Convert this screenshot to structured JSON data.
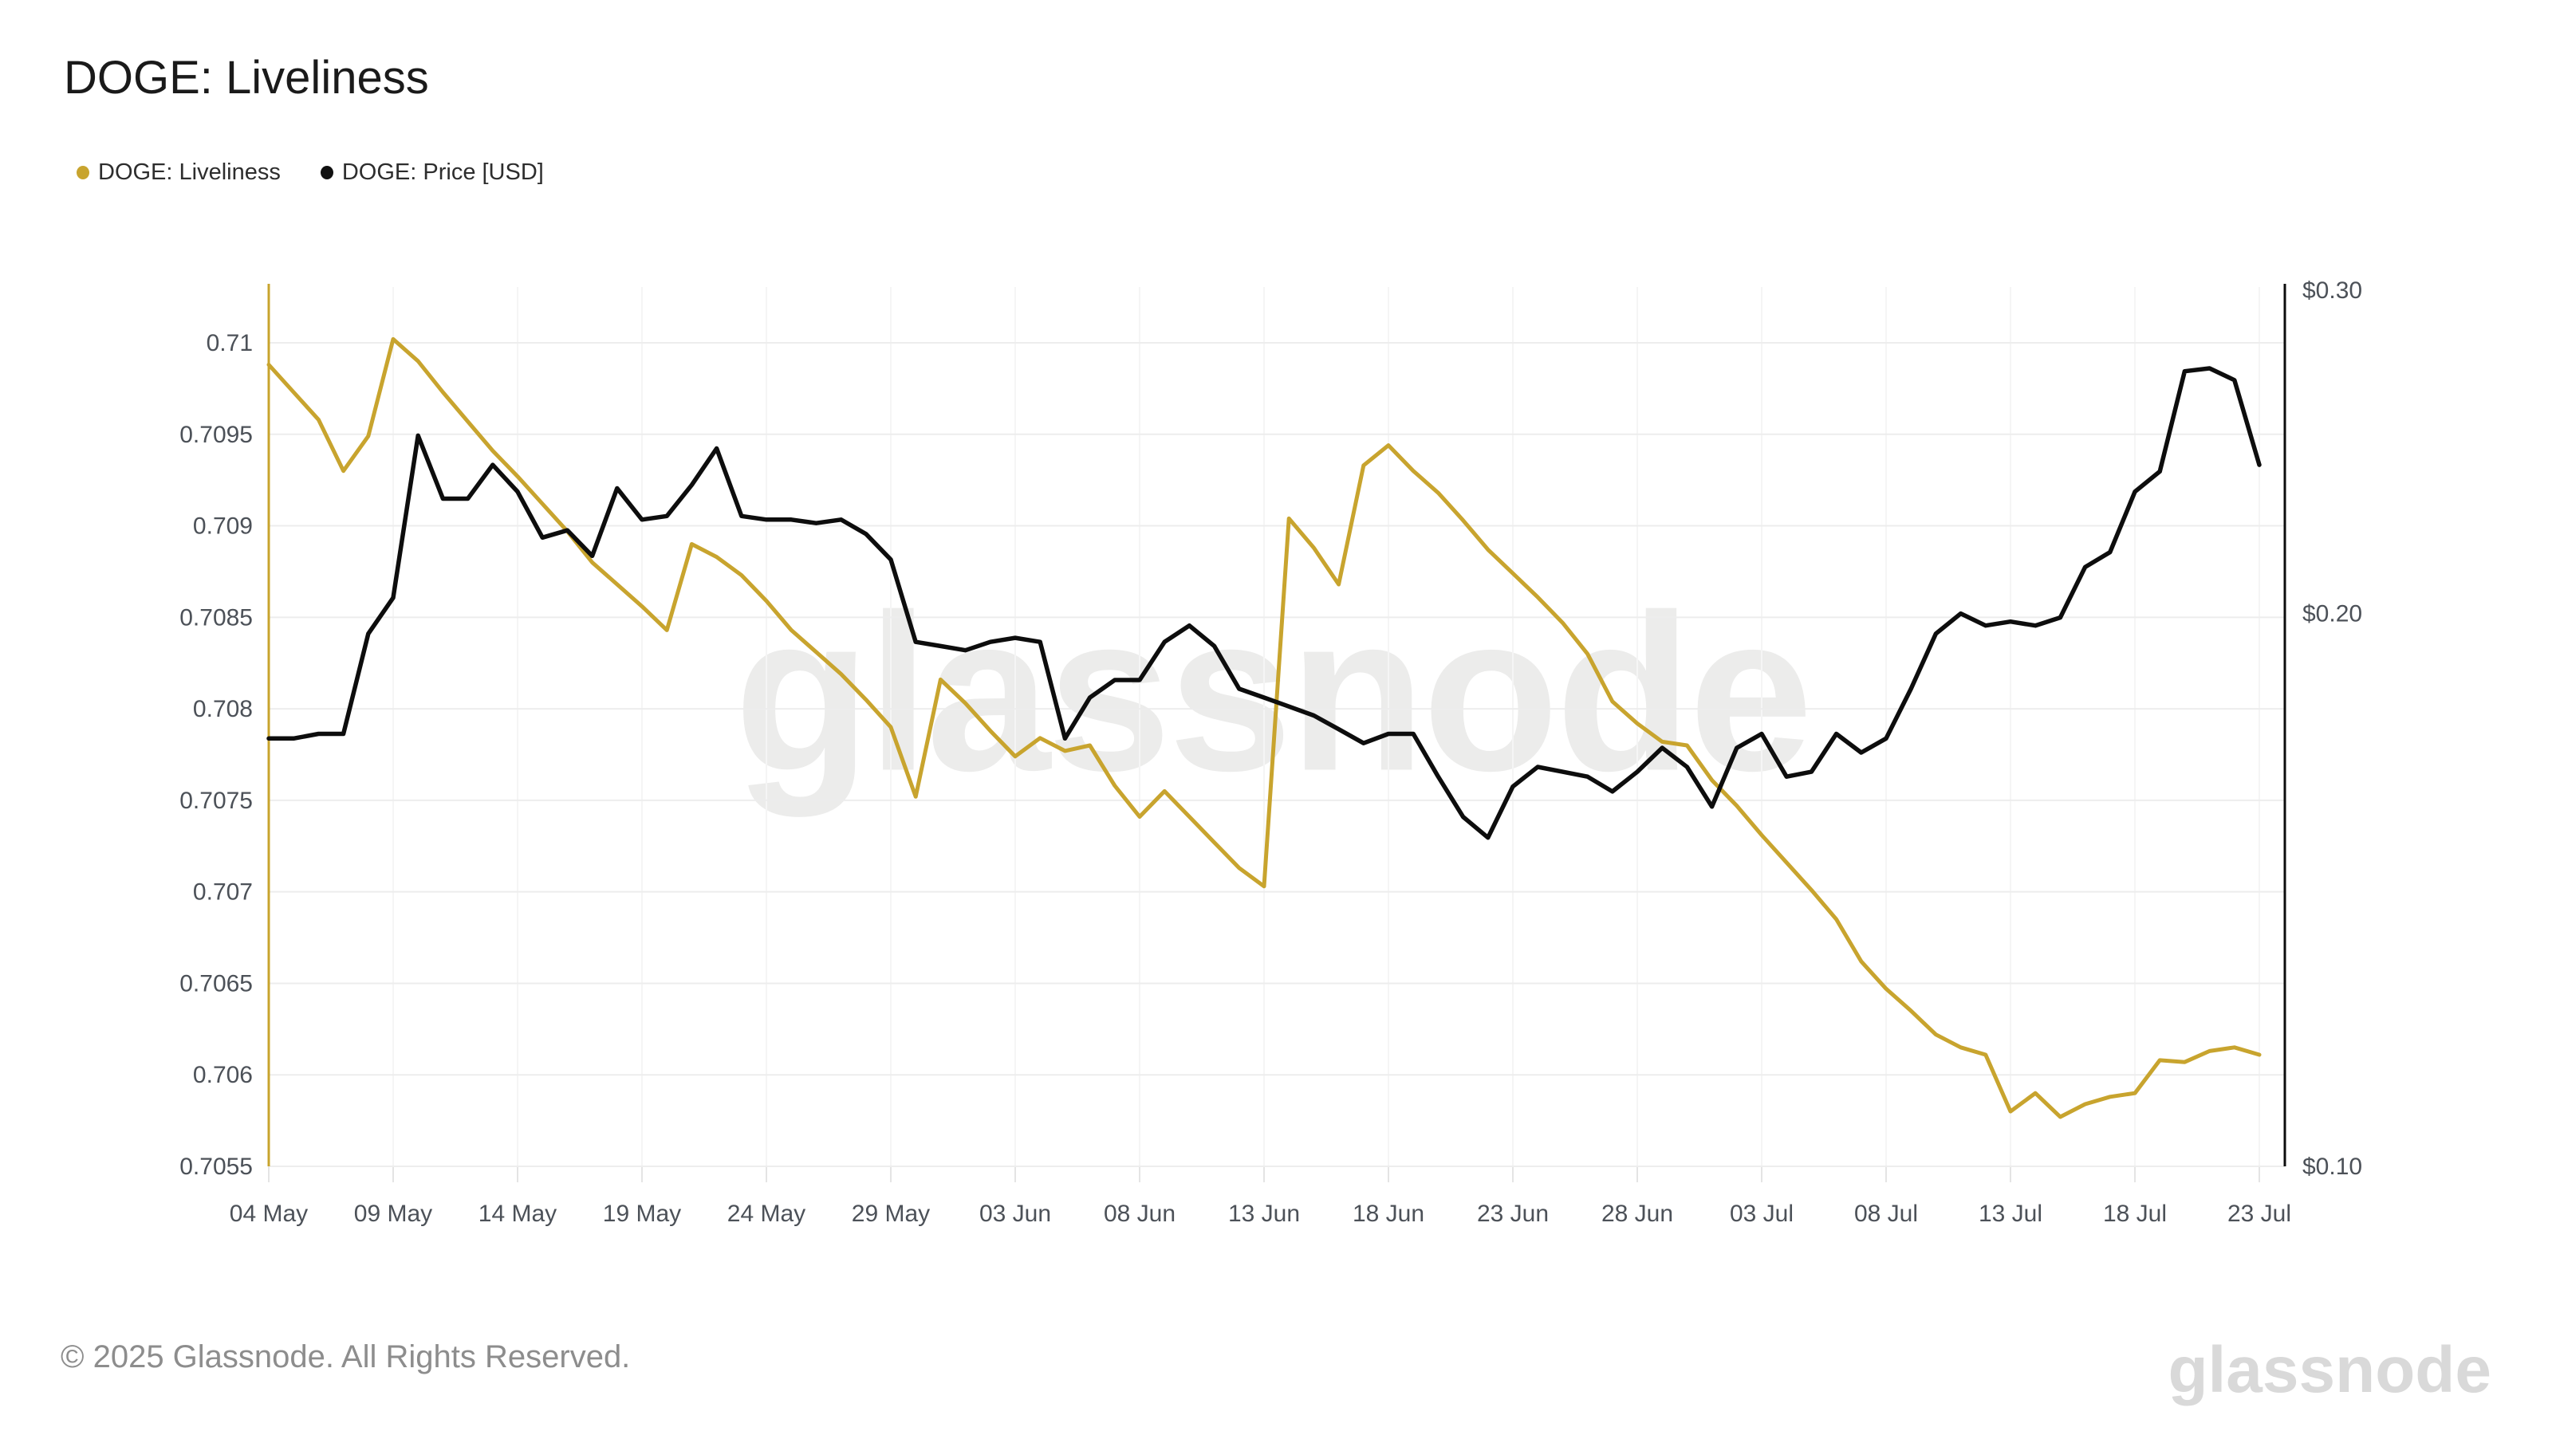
{
  "header": {
    "title": "DOGE: Liveliness"
  },
  "legend": [
    {
      "label": "DOGE: Liveliness",
      "color": "#c8a42e"
    },
    {
      "label": "DOGE: Price [USD]",
      "color": "#111111"
    }
  ],
  "watermark": {
    "text": "glassnode"
  },
  "footer": {
    "copyright": "© 2025 Glassnode. All Rights Reserved.",
    "logo": "glassnode"
  },
  "chart_data": {
    "type": "line",
    "title": "DOGE: Liveliness",
    "start_date": "04 May",
    "end_date": "23 Jul",
    "x_tick_interval_days": 5,
    "x_tick_labels": [
      "04 May",
      "09 May",
      "14 May",
      "19 May",
      "24 May",
      "29 May",
      "03 Jun",
      "08 Jun",
      "13 Jun",
      "18 Jun",
      "23 Jun",
      "28 Jun",
      "03 Jul",
      "08 Jul",
      "13 Jul",
      "18 Jul",
      "23 Jul"
    ],
    "left_axis": {
      "name": "DOGE: Liveliness",
      "scale": "linear",
      "min": 0.7055,
      "max": 0.71,
      "tick_labels": [
        "0.71",
        "0.7095",
        "0.709",
        "0.7085",
        "0.708",
        "0.7075",
        "0.707",
        "0.7065",
        "0.706",
        "0.7055"
      ]
    },
    "right_axis": {
      "name": "DOGE: Price [USD]",
      "scale": "log",
      "min": 0.1,
      "max": 0.3,
      "tick_labels": [
        "$0.30",
        "$0.20",
        "$0.10"
      ],
      "tick_values": [
        0.3,
        0.2,
        0.1
      ]
    },
    "grid": {
      "horizontal": true,
      "vertical": true
    },
    "series": [
      {
        "name": "DOGE: Liveliness",
        "axis": "left",
        "color": "#c8a42e",
        "values": [
          0.70988,
          0.70973,
          0.70958,
          0.7093,
          0.70949,
          0.71002,
          0.7099,
          0.70973,
          0.70957,
          0.70941,
          0.70927,
          0.70912,
          0.70897,
          0.7088,
          0.70868,
          0.70856,
          0.70843,
          0.7089,
          0.70883,
          0.70873,
          0.70859,
          0.70843,
          0.70831,
          0.70819,
          0.70805,
          0.7079,
          0.70752,
          0.70816,
          0.70803,
          0.70788,
          0.70774,
          0.70784,
          0.70777,
          0.7078,
          0.70758,
          0.70741,
          0.70755,
          0.70741,
          0.70727,
          0.70713,
          0.70703,
          0.70904,
          0.70888,
          0.70868,
          0.70933,
          0.70944,
          0.7093,
          0.70918,
          0.70903,
          0.70887,
          0.70874,
          0.70861,
          0.70847,
          0.7083,
          0.70804,
          0.70792,
          0.70782,
          0.7078,
          0.70761,
          0.70747,
          0.70731,
          0.70716,
          0.70701,
          0.70685,
          0.70662,
          0.70647,
          0.70635,
          0.70622,
          0.70615,
          0.70611,
          0.7058,
          0.7059,
          0.70577,
          0.70584,
          0.70588,
          0.7059,
          0.70608,
          0.70607,
          0.70613,
          0.70615,
          0.70611
        ]
      },
      {
        "name": "DOGE: Price [USD]",
        "axis": "right",
        "color": "#0d0d0d",
        "values": [
          0.171,
          0.171,
          0.172,
          0.172,
          0.195,
          0.204,
          0.25,
          0.231,
          0.231,
          0.241,
          0.233,
          0.22,
          0.222,
          0.215,
          0.234,
          0.225,
          0.226,
          0.235,
          0.246,
          0.226,
          0.225,
          0.225,
          0.224,
          0.225,
          0.221,
          0.214,
          0.193,
          0.192,
          0.191,
          0.193,
          0.194,
          0.193,
          0.171,
          0.18,
          0.184,
          0.184,
          0.193,
          0.197,
          0.192,
          0.182,
          0.18,
          0.178,
          0.176,
          0.173,
          0.17,
          0.172,
          0.172,
          0.163,
          0.155,
          0.151,
          0.161,
          0.165,
          0.164,
          0.163,
          0.16,
          0.164,
          0.169,
          0.165,
          0.157,
          0.169,
          0.172,
          0.163,
          0.164,
          0.172,
          0.168,
          0.171,
          0.182,
          0.195,
          0.2,
          0.197,
          0.198,
          0.197,
          0.199,
          0.212,
          0.216,
          0.233,
          0.239,
          0.271,
          0.272,
          0.268,
          0.241
        ]
      }
    ]
  }
}
